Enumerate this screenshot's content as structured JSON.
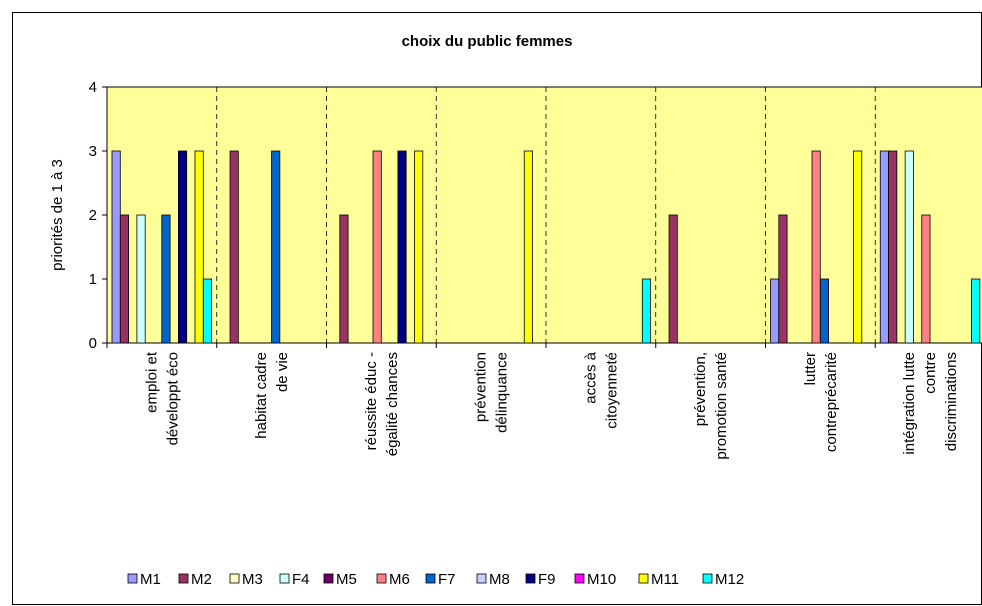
{
  "chart_data": {
    "type": "bar",
    "title": "choix du public femmes",
    "y_label": "priorités de 1 à 3",
    "categories": [
      "emploi et\ndéveloppt éco",
      "habitat cadre\nde vie",
      "réussite éduc -\négalité chances",
      "prévention\ndélinquance",
      "accès à\ncitoyenneté",
      "prévention,\npromotion santé",
      "lutter\ncontreprécarité",
      "intégration lutte\ncontre\ndiscriminations"
    ],
    "series": [
      {
        "name": "M1",
        "color": "#9999ff",
        "values": [
          3,
          null,
          null,
          null,
          null,
          null,
          1,
          3
        ]
      },
      {
        "name": "M2",
        "color": "#993366",
        "values": [
          2,
          3,
          2,
          null,
          null,
          2,
          2,
          3
        ]
      },
      {
        "name": "M3",
        "color": "#ffffcc",
        "values": [
          null,
          null,
          null,
          null,
          null,
          null,
          null,
          null
        ]
      },
      {
        "name": "F4",
        "color": "#ccffff",
        "values": [
          2,
          null,
          null,
          null,
          null,
          null,
          null,
          3
        ]
      },
      {
        "name": "M5",
        "color": "#660066",
        "values": [
          null,
          null,
          null,
          null,
          null,
          null,
          null,
          null
        ]
      },
      {
        "name": "M6",
        "color": "#ff8080",
        "values": [
          null,
          null,
          3,
          null,
          null,
          null,
          3,
          2
        ]
      },
      {
        "name": "F7",
        "color": "#0066cc",
        "values": [
          2,
          3,
          null,
          null,
          null,
          null,
          1,
          null
        ]
      },
      {
        "name": "M8",
        "color": "#ccccff",
        "values": [
          null,
          null,
          null,
          null,
          null,
          null,
          null,
          null
        ]
      },
      {
        "name": "F9",
        "color": "#000080",
        "values": [
          3,
          null,
          3,
          null,
          null,
          null,
          null,
          null
        ]
      },
      {
        "name": "M10",
        "color": "#ff00ff",
        "values": [
          null,
          null,
          null,
          null,
          null,
          null,
          null,
          null
        ]
      },
      {
        "name": "M11",
        "color": "#ffff00",
        "values": [
          3,
          null,
          3,
          3,
          null,
          null,
          3,
          null
        ]
      },
      {
        "name": "M12",
        "color": "#00ffff",
        "values": [
          1,
          null,
          null,
          null,
          1,
          null,
          null,
          1
        ]
      }
    ],
    "ylim": [
      0,
      4
    ],
    "yticks": [
      0,
      1,
      2,
      3,
      4
    ],
    "plot_background": "#ffff99",
    "legend": "bottom"
  }
}
